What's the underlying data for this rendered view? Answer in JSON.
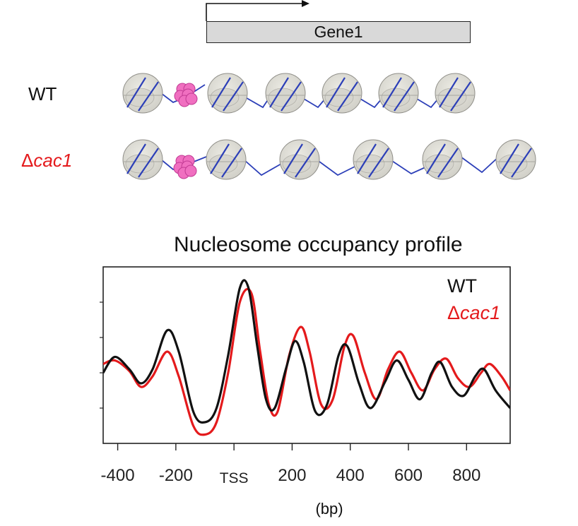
{
  "gene_label": "Gene1",
  "rows": [
    {
      "label": "WT",
      "delta": "",
      "italic": "",
      "color": "#111111"
    },
    {
      "label": "",
      "delta": "Δ",
      "italic": "cac1",
      "color": "#e41a1c"
    }
  ],
  "profile": {
    "title": "Nucleosome occupancy profile",
    "legend": [
      {
        "name": "WT",
        "color": "#111111"
      },
      {
        "delta": "Δ",
        "italic": "cac1",
        "color": "#e41a1c"
      }
    ]
  },
  "chart_data": {
    "type": "line",
    "title": "Nucleosome occupancy profile",
    "xlabel": "(bp)",
    "ylabel": "",
    "xlim": [
      -450,
      950
    ],
    "ylim": [
      0,
      1
    ],
    "x_ticks": [
      {
        "value": -400,
        "label": "-400"
      },
      {
        "value": -200,
        "label": "-200"
      },
      {
        "value": 0,
        "label": "TSS"
      },
      {
        "value": 200,
        "label": "200"
      },
      {
        "value": 400,
        "label": "400"
      },
      {
        "value": 600,
        "label": "600"
      },
      {
        "value": 800,
        "label": "800"
      }
    ],
    "series": [
      {
        "name": "WT",
        "color": "#111111",
        "x": [
          -450,
          -410,
          -360,
          -320,
          -280,
          -230,
          -190,
          -140,
          -100,
          -60,
          -20,
          20,
          50,
          80,
          110,
          140,
          180,
          210,
          240,
          280,
          320,
          360,
          390,
          430,
          470,
          520,
          560,
          600,
          640,
          680,
          710,
          750,
          790,
          830,
          860,
          900,
          950
        ],
        "y": [
          0.4,
          0.49,
          0.42,
          0.34,
          0.42,
          0.64,
          0.52,
          0.18,
          0.12,
          0.2,
          0.5,
          0.88,
          0.88,
          0.55,
          0.25,
          0.2,
          0.43,
          0.58,
          0.46,
          0.18,
          0.22,
          0.5,
          0.55,
          0.34,
          0.2,
          0.35,
          0.47,
          0.36,
          0.25,
          0.4,
          0.46,
          0.32,
          0.27,
          0.38,
          0.42,
          0.3,
          0.2
        ]
      },
      {
        "name": "Δcac1",
        "color": "#e41a1c",
        "x": [
          -450,
          -410,
          -360,
          -320,
          -280,
          -230,
          -190,
          -140,
          -100,
          -60,
          -20,
          20,
          60,
          90,
          120,
          150,
          190,
          230,
          260,
          300,
          340,
          380,
          410,
          450,
          490,
          530,
          570,
          610,
          650,
          690,
          730,
          770,
          810,
          850,
          880,
          920,
          950
        ],
        "y": [
          0.45,
          0.47,
          0.41,
          0.32,
          0.38,
          0.52,
          0.38,
          0.1,
          0.05,
          0.12,
          0.4,
          0.8,
          0.85,
          0.52,
          0.22,
          0.18,
          0.5,
          0.66,
          0.52,
          0.22,
          0.25,
          0.55,
          0.61,
          0.4,
          0.25,
          0.42,
          0.52,
          0.4,
          0.3,
          0.42,
          0.48,
          0.37,
          0.32,
          0.4,
          0.45,
          0.38,
          0.3
        ]
      }
    ]
  }
}
